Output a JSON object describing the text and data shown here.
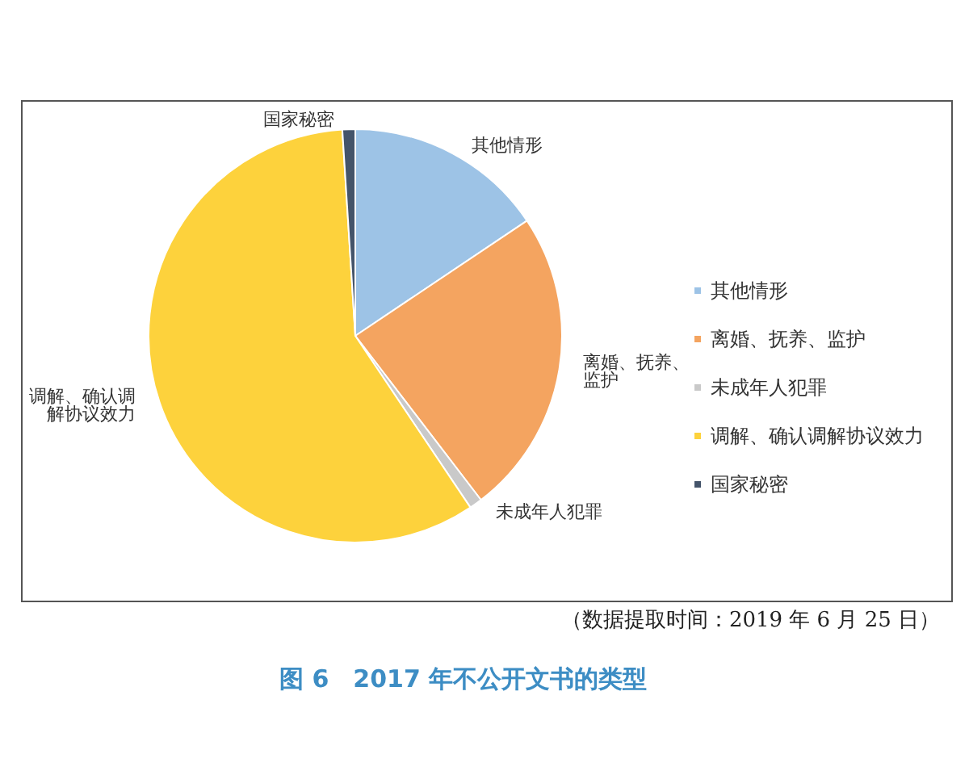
{
  "chart_data": {
    "type": "pie",
    "title": "图 6　2017 年不公开文书的类型",
    "annotations": [
      "（数据提取时间：2019 年 6 月 25 日）"
    ],
    "categories": [
      "其他情形",
      "离婚、抚养、监护",
      "未成年人犯罪",
      "调解、确认调解协议效力",
      "国家秘密"
    ],
    "values": [
      15.6,
      24,
      1,
      58.4,
      1
    ],
    "colors": [
      "#9dc3e6",
      "#f4a460",
      "#c9c9c9",
      "#fdd23c",
      "#44546a"
    ],
    "value_labels": [
      "其他情形",
      "离婚、抚养、监护",
      "未成年人犯罪",
      "调解、确认调解协议效力",
      "国家秘密"
    ],
    "legend": "right"
  }
}
